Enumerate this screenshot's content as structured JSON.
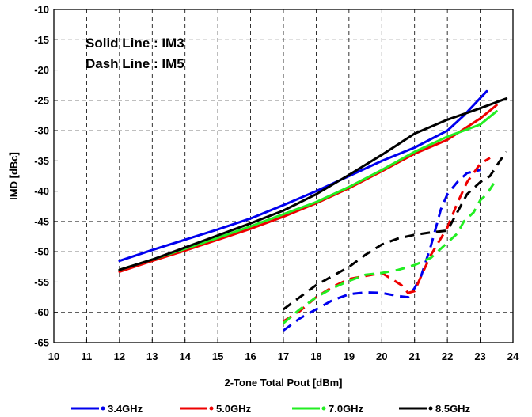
{
  "chart_data": {
    "type": "line",
    "xlabel": "2-Tone Total Pout  [dBm]",
    "ylabel": "IMD  [dBc]",
    "xlim": [
      10,
      24
    ],
    "ylim": [
      -65,
      -10
    ],
    "x_ticks": [
      "10",
      "11",
      "12",
      "13",
      "14",
      "15",
      "16",
      "17",
      "18",
      "19",
      "20",
      "21",
      "22",
      "23",
      "24"
    ],
    "y_ticks": [
      "-10",
      "-15",
      "-20",
      "-25",
      "-30",
      "-35",
      "-40",
      "-45",
      "-50",
      "-55",
      "-60",
      "-65"
    ],
    "grid": "dashed",
    "legend_position": "bottom",
    "annotations": [
      "Solid Line : IM3",
      "Dash Line : IM5"
    ],
    "series": [
      {
        "name": "3.4GHz",
        "color": "#0000ee",
        "im3": [
          [
            12,
            -51.5
          ],
          [
            13,
            -49.7
          ],
          [
            14,
            -48
          ],
          [
            15,
            -46.3
          ],
          [
            16,
            -44.5
          ],
          [
            17,
            -42.3
          ],
          [
            18,
            -40
          ],
          [
            19,
            -37.5
          ],
          [
            20,
            -35
          ],
          [
            21,
            -32.8
          ],
          [
            22,
            -30
          ],
          [
            22.5,
            -27.5
          ],
          [
            23.2,
            -23.5
          ]
        ],
        "im5": [
          [
            17,
            -63
          ],
          [
            17.5,
            -61
          ],
          [
            18,
            -59.5
          ],
          [
            18.5,
            -58
          ],
          [
            19,
            -57
          ],
          [
            19.5,
            -56.7
          ],
          [
            20,
            -56.8
          ],
          [
            20.5,
            -57.3
          ],
          [
            20.8,
            -57.5
          ],
          [
            21,
            -56
          ],
          [
            21.2,
            -54
          ],
          [
            21.5,
            -49
          ],
          [
            21.8,
            -43
          ],
          [
            22,
            -40.5
          ],
          [
            22.3,
            -38.5
          ],
          [
            22.6,
            -37
          ],
          [
            23,
            -36.5
          ]
        ]
      },
      {
        "name": "5.0GHz",
        "color": "#ee0000",
        "im3": [
          [
            12,
            -53.3
          ],
          [
            13,
            -51.5
          ],
          [
            14,
            -49.8
          ],
          [
            15,
            -48
          ],
          [
            16,
            -46.2
          ],
          [
            17,
            -44.2
          ],
          [
            18,
            -42
          ],
          [
            19,
            -39.5
          ],
          [
            20,
            -36.7
          ],
          [
            21,
            -33.8
          ],
          [
            22,
            -31.5
          ],
          [
            23,
            -28
          ],
          [
            23.5,
            -25.8
          ]
        ],
        "im5": [
          [
            17,
            -61.5
          ],
          [
            17.5,
            -59.8
          ],
          [
            18,
            -57.5
          ],
          [
            18.5,
            -55.8
          ],
          [
            19,
            -54.5
          ],
          [
            19.5,
            -54
          ],
          [
            20,
            -53.5
          ],
          [
            20.3,
            -54.5
          ],
          [
            20.6,
            -55.5
          ],
          [
            20.8,
            -56.8
          ],
          [
            21,
            -56.5
          ],
          [
            21.2,
            -54
          ],
          [
            21.5,
            -50.5
          ],
          [
            22,
            -46
          ],
          [
            22.3,
            -42
          ],
          [
            22.6,
            -38.5
          ],
          [
            23,
            -35.5
          ],
          [
            23.3,
            -34.5
          ]
        ]
      },
      {
        "name": "7.0GHz",
        "color": "#22ee22",
        "im3": [
          [
            12,
            -53
          ],
          [
            13,
            -51.3
          ],
          [
            14,
            -49.5
          ],
          [
            15,
            -47.7
          ],
          [
            16,
            -45.8
          ],
          [
            17,
            -43.8
          ],
          [
            18,
            -41.8
          ],
          [
            19,
            -39.3
          ],
          [
            20,
            -36.5
          ],
          [
            21,
            -33.5
          ],
          [
            22,
            -31
          ],
          [
            23,
            -29
          ],
          [
            23.5,
            -26.8
          ]
        ],
        "im5": [
          [
            17,
            -61.8
          ],
          [
            17.5,
            -59.5
          ],
          [
            18,
            -57.5
          ],
          [
            18.5,
            -56
          ],
          [
            19,
            -54.8
          ],
          [
            19.5,
            -53.8
          ],
          [
            20,
            -53.5
          ],
          [
            20.5,
            -53
          ],
          [
            21,
            -52.2
          ],
          [
            21.5,
            -51
          ],
          [
            22,
            -48.5
          ],
          [
            22.3,
            -47
          ],
          [
            22.5,
            -45
          ],
          [
            22.8,
            -43.5
          ],
          [
            23,
            -41.5
          ],
          [
            23.2,
            -40.5
          ],
          [
            23.5,
            -38
          ]
        ]
      },
      {
        "name": "8.5GHz",
        "color": "#000000",
        "im3": [
          [
            12,
            -53
          ],
          [
            13,
            -51.3
          ],
          [
            14,
            -49.3
          ],
          [
            15,
            -47.3
          ],
          [
            16,
            -45.3
          ],
          [
            17,
            -43.2
          ],
          [
            18,
            -40.5
          ],
          [
            19,
            -37.3
          ],
          [
            20,
            -34
          ],
          [
            21,
            -30.5
          ],
          [
            22,
            -28.2
          ],
          [
            23,
            -26.3
          ],
          [
            23.8,
            -24.7
          ]
        ],
        "im5": [
          [
            17,
            -59.5
          ],
          [
            17.5,
            -57.5
          ],
          [
            18,
            -55.5
          ],
          [
            18.5,
            -54
          ],
          [
            19,
            -52.5
          ],
          [
            19.5,
            -50.5
          ],
          [
            20,
            -48.8
          ],
          [
            20.5,
            -47.8
          ],
          [
            21,
            -47.2
          ],
          [
            21.5,
            -46.8
          ],
          [
            22,
            -46.5
          ],
          [
            22.3,
            -43.5
          ],
          [
            22.6,
            -40.5
          ],
          [
            23,
            -38.5
          ],
          [
            23.3,
            -37.5
          ],
          [
            23.6,
            -35
          ],
          [
            23.8,
            -33.5
          ]
        ]
      }
    ]
  }
}
